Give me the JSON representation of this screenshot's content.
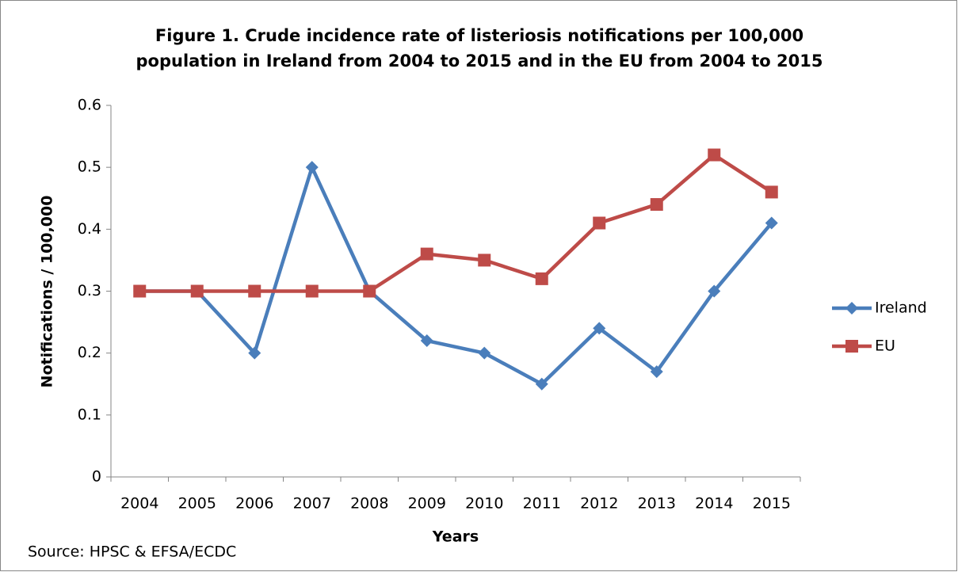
{
  "chart_data": {
    "type": "line",
    "title": [
      "Figure 1. Crude incidence rate of listeriosis notifications per 100,000",
      "population in Ireland from 2004 to 2015 and in the EU from 2004 to 2015"
    ],
    "xlabel": "Years",
    "ylabel": "Notifications / 100,000",
    "source": "Source: HPSC & EFSA/ECDC",
    "categories": [
      "2004",
      "2005",
      "2006",
      "2007",
      "2008",
      "2009",
      "2010",
      "2011",
      "2012",
      "2013",
      "2014",
      "2015"
    ],
    "series": [
      {
        "name": "Ireland",
        "color": "#4a7ebb",
        "marker": "diamond",
        "values": [
          0.3,
          0.3,
          0.2,
          0.5,
          0.3,
          0.22,
          0.2,
          0.15,
          0.24,
          0.17,
          0.3,
          0.41
        ]
      },
      {
        "name": "EU",
        "color": "#be4b48",
        "marker": "square",
        "values": [
          0.3,
          0.3,
          0.3,
          0.3,
          0.3,
          0.36,
          0.35,
          0.32,
          0.41,
          0.44,
          0.52,
          0.46
        ]
      }
    ],
    "ylim": [
      0,
      0.6
    ],
    "yticks": [
      0,
      0.1,
      0.2,
      0.3,
      0.4,
      0.5,
      0.6
    ],
    "grid": false,
    "legend": "right"
  }
}
